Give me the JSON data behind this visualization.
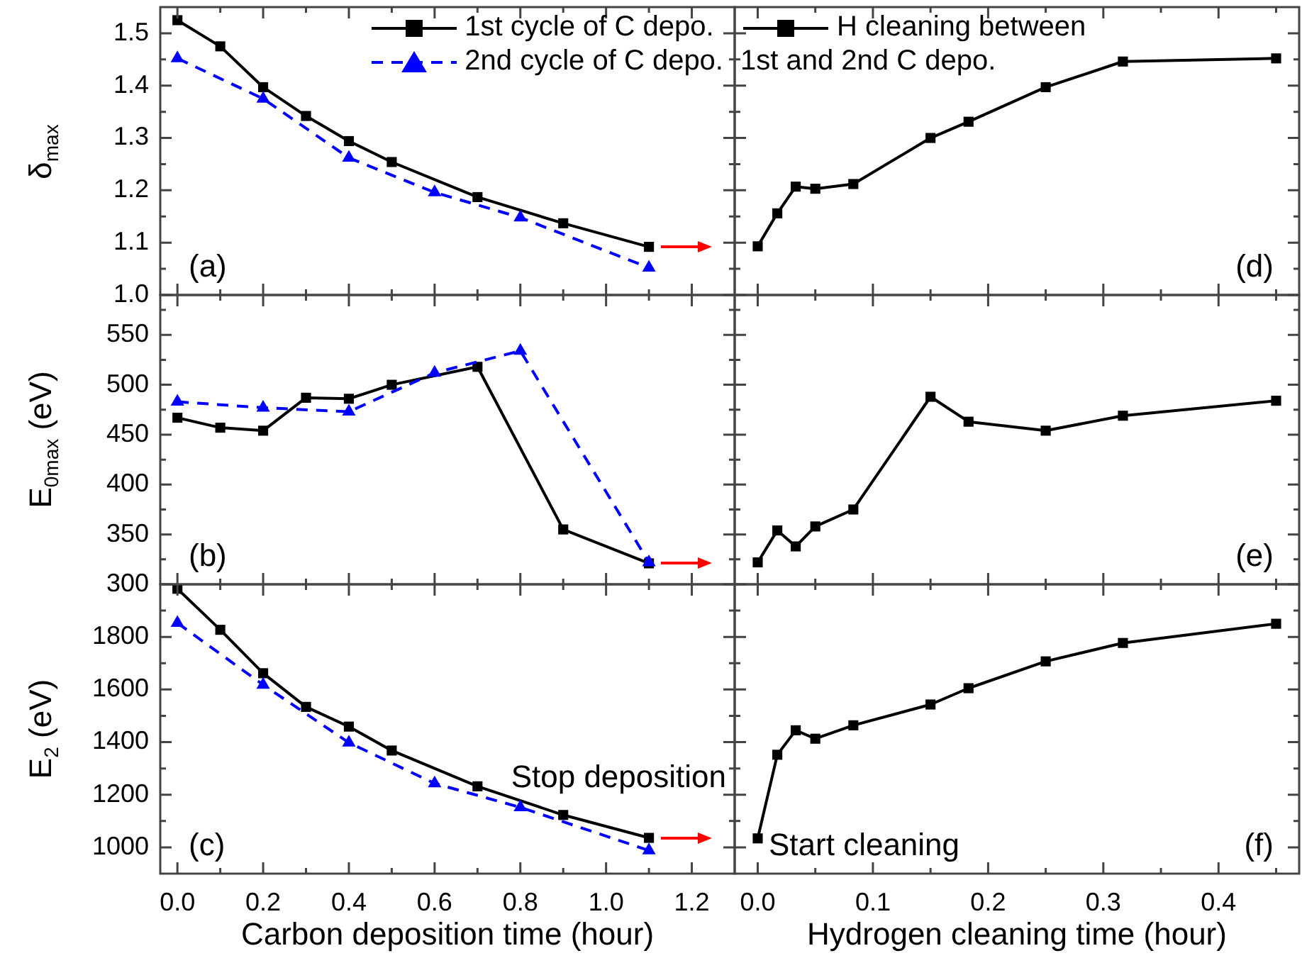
{
  "chart_data": [
    {
      "type": "line",
      "ylabel": "δ$_{max}$",
      "legend": "top right",
      "tick_labels": "y",
      "xlim": [
        -0.04,
        1.3
      ],
      "ylim": [
        1.0,
        1.55
      ],
      "xticks": [
        0,
        {
          "value": 0.1,
          "label": null
        },
        0.2,
        {
          "value": 0.3,
          "label": null
        },
        0.4,
        {
          "value": 0.5,
          "label": null
        },
        0.6,
        {
          "value": 0.7,
          "label": null
        },
        0.8,
        {
          "value": 0.9,
          "label": null
        },
        1,
        {
          "value": 1.1,
          "label": null
        },
        1.2
      ],
      "yticks": [
        {
          "value": 1,
          "label": "1.0"
        },
        {
          "value": 1.05,
          "label": null
        },
        1.1,
        {
          "value": 1.15,
          "label": null
        },
        1.2,
        {
          "value": 1.25,
          "label": null
        },
        1.3,
        {
          "value": 1.35,
          "label": null
        },
        1.4,
        {
          "value": 1.45,
          "label": null
        },
        1.5
      ],
      "series": [
        {
          "name": "1st cycle of C depo.",
          "color": "#000000",
          "marker": "square",
          "line_style": "solid",
          "x": [
            0,
            0.1,
            0.2,
            0.3,
            0.4,
            0.5,
            0.7,
            0.9,
            1.1
          ],
          "values": [
            1.525,
            1.475,
            1.397,
            1.342,
            1.294,
            1.254,
            1.187,
            1.137,
            1.092
          ]
        },
        {
          "name": "2nd cycle of C depo.",
          "color": "#0000ff",
          "marker": "triangle",
          "line_style": "dashed",
          "x": [
            0,
            0.2,
            0.4,
            0.6,
            0.8,
            1.1
          ],
          "values": [
            1.452,
            1.375,
            1.262,
            1.196,
            1.148,
            1.052
          ]
        }
      ],
      "annotations": [
        "(a)"
      ]
    },
    {
      "type": "line",
      "legend": "top left",
      "tick_labels": false,
      "xlim": [
        -0.02,
        0.47
      ],
      "ylim": [
        1.0,
        1.55
      ],
      "xticks": [
        0,
        {
          "value": 0.05,
          "label": null
        },
        0.1,
        {
          "value": 0.15,
          "label": null
        },
        0.2,
        {
          "value": 0.25,
          "label": null
        },
        0.3,
        {
          "value": 0.35,
          "label": null
        },
        0.4,
        {
          "value": 0.45,
          "label": null
        }
      ],
      "yticks": [
        1,
        {
          "value": 1.05,
          "label": null
        },
        1.1,
        {
          "value": 1.15,
          "label": null
        },
        1.2,
        {
          "value": 1.25,
          "label": null
        },
        1.3,
        {
          "value": 1.35,
          "label": null
        },
        1.4,
        {
          "value": 1.45,
          "label": null
        },
        1.5
      ],
      "series": [
        {
          "name": "H cleaning between 1st and 2nd C depo.",
          "color": "#000000",
          "marker": "square",
          "line_style": "solid",
          "x": [
            0,
            0.017,
            0.033,
            0.05,
            0.083,
            0.15,
            0.183,
            0.25,
            0.317,
            0.45
          ],
          "values": [
            1.093,
            1.156,
            1.207,
            1.203,
            1.212,
            1.3,
            1.331,
            1.397,
            1.446,
            1.452
          ]
        }
      ],
      "annotations": [
        "(d)"
      ]
    },
    {
      "type": "line",
      "ylabel": "E$_{0max}$ (eV)",
      "tick_labels": "y",
      "xlim": [
        -0.04,
        1.3
      ],
      "ylim": [
        300,
        590
      ],
      "xticks": [
        0,
        {
          "value": 0.1,
          "label": null
        },
        0.2,
        {
          "value": 0.3,
          "label": null
        },
        0.4,
        {
          "value": 0.5,
          "label": null
        },
        0.6,
        {
          "value": 0.7,
          "label": null
        },
        0.8,
        {
          "value": 0.9,
          "label": null
        },
        1,
        {
          "value": 1.1,
          "label": null
        },
        1.2
      ],
      "yticks": [
        300,
        {
          "value": 325,
          "label": null
        },
        350,
        {
          "value": 375,
          "label": null
        },
        400,
        {
          "value": 425,
          "label": null
        },
        450,
        {
          "value": 475,
          "label": null
        },
        500,
        {
          "value": 525,
          "label": null
        },
        550,
        {
          "value": 575,
          "label": null
        }
      ],
      "series": [
        {
          "color": "#000000",
          "marker": "square",
          "line_style": "solid",
          "x": [
            0,
            0.1,
            0.2,
            0.3,
            0.4,
            0.5,
            0.7,
            0.9,
            1.1
          ],
          "values": [
            467,
            457,
            454,
            487,
            486,
            500,
            518,
            355,
            321
          ]
        },
        {
          "color": "#0000ff",
          "marker": "triangle",
          "line_style": "dashed",
          "x": [
            0,
            0.2,
            0.4,
            0.6,
            0.8,
            1.1
          ],
          "values": [
            483,
            477,
            473,
            512,
            534,
            322
          ]
        }
      ],
      "annotations": [
        "(b)"
      ]
    },
    {
      "type": "line",
      "tick_labels": false,
      "xlim": [
        -0.02,
        0.47
      ],
      "ylim": [
        300,
        590
      ],
      "xticks": [
        0,
        {
          "value": 0.05,
          "label": null
        },
        0.1,
        {
          "value": 0.15,
          "label": null
        },
        0.2,
        {
          "value": 0.25,
          "label": null
        },
        0.3,
        {
          "value": 0.35,
          "label": null
        },
        0.4,
        {
          "value": 0.45,
          "label": null
        }
      ],
      "yticks": [
        300,
        {
          "value": 325,
          "label": null
        },
        350,
        {
          "value": 375,
          "label": null
        },
        400,
        {
          "value": 425,
          "label": null
        },
        450,
        {
          "value": 475,
          "label": null
        },
        500,
        {
          "value": 525,
          "label": null
        },
        550,
        {
          "value": 575,
          "label": null
        }
      ],
      "series": [
        {
          "color": "#000000",
          "marker": "square",
          "line_style": "solid",
          "x": [
            0,
            0.017,
            0.033,
            0.05,
            0.083,
            0.15,
            0.183,
            0.25,
            0.317,
            0.45
          ],
          "values": [
            322,
            354,
            338,
            358,
            375,
            488,
            463,
            454,
            469,
            484
          ]
        }
      ],
      "annotations": [
        "(e)"
      ]
    },
    {
      "type": "line",
      "ylabel": "E$_{2}$ (eV)",
      "xlabel": "Carbon deposition time (hour)",
      "xlim": [
        -0.04,
        1.3
      ],
      "ylim": [
        900,
        2000
      ],
      "xticks": [
        {
          "value": 0,
          "label": "0.0"
        },
        {
          "value": 0.1,
          "label": null
        },
        0.2,
        {
          "value": 0.3,
          "label": null
        },
        0.4,
        {
          "value": 0.5,
          "label": null
        },
        0.6,
        {
          "value": 0.7,
          "label": null
        },
        0.8,
        {
          "value": 0.9,
          "label": null
        },
        {
          "value": 1,
          "label": "1.0"
        },
        {
          "value": 1.1,
          "label": null
        },
        1.2
      ],
      "yticks": [
        1000,
        {
          "value": 1100,
          "label": null
        },
        1200,
        {
          "value": 1300,
          "label": null
        },
        1400,
        {
          "value": 1500,
          "label": null
        },
        1600,
        {
          "value": 1700,
          "label": null
        },
        1800,
        {
          "value": 1900,
          "label": null
        }
      ],
      "series": [
        {
          "color": "#000000",
          "marker": "square",
          "line_style": "solid",
          "x": [
            0,
            0.1,
            0.2,
            0.3,
            0.4,
            0.5,
            0.7,
            0.9,
            1.1
          ],
          "values": [
            1983,
            1827,
            1662,
            1534,
            1459,
            1368,
            1232,
            1123,
            1036
          ]
        },
        {
          "color": "#0000ff",
          "marker": "triangle",
          "line_style": "dashed",
          "x": [
            0,
            0.2,
            0.4,
            0.6,
            0.8,
            1.1
          ],
          "values": [
            1853,
            1618,
            1398,
            1243,
            1152,
            988
          ]
        }
      ],
      "annotations": [
        "(c)",
        "Stop deposition"
      ]
    },
    {
      "type": "line",
      "xlabel": "Hydrogen cleaning time (hour)",
      "tick_labels": "x",
      "xlim": [
        -0.02,
        0.47
      ],
      "ylim": [
        900,
        2000
      ],
      "xticks": [
        {
          "value": 0,
          "label": "0.0"
        },
        {
          "value": 0.05,
          "label": null
        },
        0.1,
        {
          "value": 0.15,
          "label": null
        },
        0.2,
        {
          "value": 0.25,
          "label": null
        },
        0.3,
        {
          "value": 0.35,
          "label": null
        },
        0.4,
        {
          "value": 0.45,
          "label": null
        }
      ],
      "yticks": [
        1000,
        {
          "value": 1100,
          "label": null
        },
        1200,
        {
          "value": 1300,
          "label": null
        },
        1400,
        {
          "value": 1500,
          "label": null
        },
        1600,
        {
          "value": 1700,
          "label": null
        },
        1800,
        {
          "value": 1900,
          "label": null
        }
      ],
      "series": [
        {
          "color": "#000000",
          "marker": "square",
          "line_style": "solid",
          "x": [
            0,
            0.017,
            0.033,
            0.05,
            0.083,
            0.15,
            0.183,
            0.25,
            0.317,
            0.45
          ],
          "values": [
            1034,
            1352,
            1445,
            1413,
            1464,
            1543,
            1605,
            1707,
            1777,
            1850
          ]
        }
      ],
      "annotations": [
        "(f)",
        "Start cleaning"
      ]
    }
  ]
}
